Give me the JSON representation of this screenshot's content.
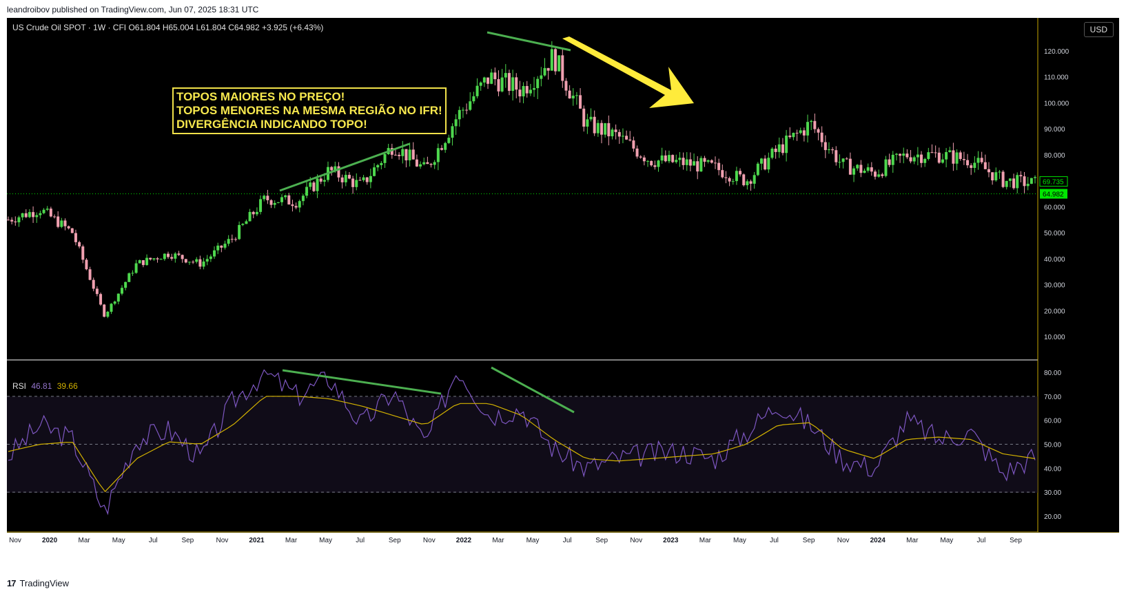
{
  "header": {
    "publisher_line": "leandroibov published on TradingView.com, Jun 07, 2025 18:31 UTC"
  },
  "footer": {
    "brand": "TradingView",
    "logo_glyph": "17"
  },
  "toolbar": {
    "currency": "USD"
  },
  "legend": {
    "ohlc": "US Crude Oil SPOT · 1W · CFI  O61.804  H65.004  L61.804  C64.982  +3.925 (+6.43%)",
    "rsi_label": "RSI",
    "rsi_value": "46.81",
    "rsi_ma_value": "39.66"
  },
  "annotation": {
    "lines": [
      "TOPOS MAIORES NO PREÇO!",
      "TOPOS MENORES NA MESMA REGIÃO NO IFR!",
      "DIVERGÊNCIA INDICANDO TOPO!"
    ]
  },
  "colors": {
    "up": "#4ed84e",
    "down": "#f0a0b0",
    "rsi_line": "#7e57c2",
    "rsi_ma": "#d4b300",
    "trendline": "#4caf50",
    "arrow": "#ffeb3b",
    "last_price": "#00e600",
    "background": "#000000"
  },
  "chart_data": [
    {
      "type": "candlestick",
      "title": "US Crude Oil SPOT · 1W · CFI",
      "y_ticks": [
        "10.000",
        "20.000",
        "30.000",
        "40.000",
        "50.000",
        "60.000",
        "70.000",
        "80.000",
        "90.000",
        "100.000",
        "110.000",
        "120.000"
      ],
      "ylim": [
        0,
        128
      ],
      "price_labels": {
        "prev": "69.735",
        "last": "64.982"
      },
      "x_ticks": [
        "Nov",
        "2020",
        "Mar",
        "May",
        "Jul",
        "Sep",
        "Nov",
        "2021",
        "Mar",
        "May",
        "Jul",
        "Sep",
        "Nov",
        "2022",
        "Mar",
        "May",
        "Jul",
        "Sep",
        "Nov",
        "2023",
        "Mar",
        "May",
        "Jul",
        "Sep",
        "Nov",
        "2024",
        "Mar",
        "May",
        "Jul",
        "Sep"
      ],
      "series": [
        {
          "name": "Close (approx.)",
          "x": [
            "2019-10",
            "2019-12",
            "2020-02",
            "2020-04",
            "2020-06",
            "2020-08",
            "2020-10",
            "2020-12",
            "2021-02",
            "2021-04",
            "2021-06",
            "2021-08",
            "2021-10",
            "2021-12",
            "2022-02",
            "2022-03",
            "2022-05",
            "2022-06",
            "2022-08",
            "2022-10",
            "2022-12",
            "2023-02",
            "2023-04",
            "2023-06",
            "2023-08",
            "2023-09",
            "2023-11",
            "2024-01",
            "2024-03",
            "2024-05",
            "2024-07",
            "2024-09",
            "2024-10"
          ],
          "values": [
            55,
            59,
            50,
            18,
            38,
            42,
            38,
            48,
            63,
            62,
            74,
            68,
            84,
            74,
            95,
            110,
            105,
            118,
            92,
            87,
            78,
            77,
            75,
            70,
            82,
            92,
            76,
            73,
            80,
            80,
            78,
            70,
            69
          ]
        }
      ]
    },
    {
      "type": "line",
      "title": "RSI",
      "y_ticks": [
        "20.00",
        "30.00",
        "40.00",
        "50.00",
        "60.00",
        "70.00",
        "80.00"
      ],
      "ylim": [
        15,
        84
      ],
      "bands": [
        30,
        50,
        70
      ],
      "series": [
        {
          "name": "RSI",
          "values": [
            45,
            58,
            52,
            22,
            52,
            56,
            44,
            68,
            80,
            70,
            78,
            58,
            72,
            50,
            82,
            62,
            65,
            48,
            40,
            44,
            46,
            47,
            44,
            55,
            67,
            58,
            44,
            40,
            60,
            52,
            55,
            38,
            45
          ]
        },
        {
          "name": "RSI MA",
          "values": [
            47,
            50,
            51,
            30,
            44,
            51,
            50,
            58,
            70,
            70,
            69,
            66,
            62,
            58,
            67,
            67,
            62,
            52,
            44,
            43,
            44,
            45,
            46,
            50,
            58,
            59,
            48,
            44,
            52,
            53,
            52,
            46,
            44
          ]
        }
      ]
    }
  ]
}
